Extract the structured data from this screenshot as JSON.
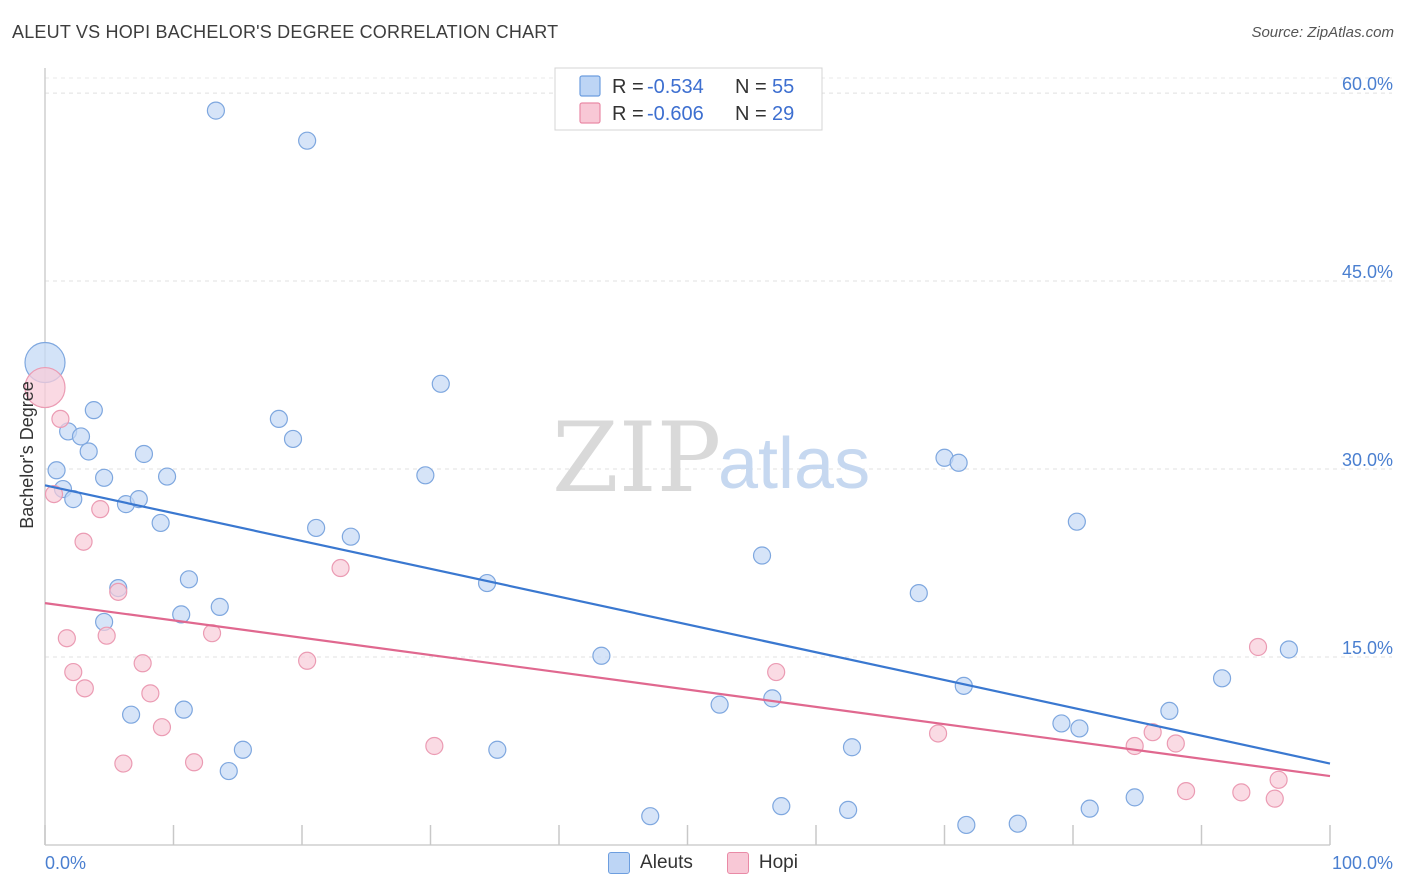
{
  "header": {
    "title": "ALEUT VS HOPI BACHELOR'S DEGREE CORRELATION CHART",
    "source": "Source: ZipAtlas.com"
  },
  "watermark": {
    "zip": "ZIP",
    "atlas": "atlas"
  },
  "stats": [
    {
      "r_label": "R =",
      "r_value": "-0.534",
      "n_label": "N =",
      "n_value": "55",
      "color": "#6d9edf",
      "fill": "#bdd5f5"
    },
    {
      "r_label": "R =",
      "r_value": "-0.606",
      "n_label": "N =",
      "n_value": "29",
      "color": "#e98aa6",
      "fill": "#f8c8d6"
    }
  ],
  "legend": [
    {
      "label": "Aleuts",
      "fill": "#bdd5f5",
      "border": "#6d9edf"
    },
    {
      "label": "Hopi",
      "fill": "#f8c8d6",
      "border": "#e98aa6"
    }
  ],
  "chart_data": {
    "type": "scatter",
    "title": "ALEUT VS HOPI BACHELOR'S DEGREE CORRELATION CHART",
    "xlabel": "",
    "ylabel": "Bachelor's Degree",
    "xlim": [
      0,
      100
    ],
    "ylim": [
      0,
      62
    ],
    "x_tick_labels": [
      "0.0%",
      "100.0%"
    ],
    "y_ticks": [
      15,
      30,
      45,
      60
    ],
    "y_tick_labels": [
      "15.0%",
      "30.0%",
      "45.0%",
      "60.0%"
    ],
    "grid": true,
    "series": [
      {
        "name": "Aleuts",
        "color": "#3a78d0",
        "fill": "#c4d9f5",
        "stroke": "#7ea7df",
        "trend": [
          [
            0,
            28.7
          ],
          [
            100,
            6.5
          ]
        ],
        "points": [
          {
            "x": 0.0,
            "y": 38.5,
            "big": true
          },
          {
            "x": 0.9,
            "y": 29.9
          },
          {
            "x": 1.4,
            "y": 28.4
          },
          {
            "x": 1.8,
            "y": 33.0
          },
          {
            "x": 2.2,
            "y": 27.6
          },
          {
            "x": 2.8,
            "y": 32.6
          },
          {
            "x": 3.4,
            "y": 31.4
          },
          {
            "x": 3.8,
            "y": 34.7
          },
          {
            "x": 4.6,
            "y": 29.3
          },
          {
            "x": 4.6,
            "y": 17.8
          },
          {
            "x": 5.7,
            "y": 20.5
          },
          {
            "x": 6.3,
            "y": 27.2
          },
          {
            "x": 6.7,
            "y": 10.4
          },
          {
            "x": 7.3,
            "y": 27.6
          },
          {
            "x": 7.7,
            "y": 31.2
          },
          {
            "x": 9.0,
            "y": 25.7
          },
          {
            "x": 9.5,
            "y": 29.4
          },
          {
            "x": 10.6,
            "y": 18.4
          },
          {
            "x": 10.8,
            "y": 10.8
          },
          {
            "x": 11.2,
            "y": 21.2
          },
          {
            "x": 13.3,
            "y": 58.6
          },
          {
            "x": 13.6,
            "y": 19.0
          },
          {
            "x": 14.3,
            "y": 5.9
          },
          {
            "x": 15.4,
            "y": 7.6
          },
          {
            "x": 18.2,
            "y": 34.0
          },
          {
            "x": 19.3,
            "y": 32.4
          },
          {
            "x": 20.4,
            "y": 56.2
          },
          {
            "x": 21.1,
            "y": 25.3
          },
          {
            "x": 23.8,
            "y": 24.6
          },
          {
            "x": 29.6,
            "y": 29.5
          },
          {
            "x": 30.8,
            "y": 36.8
          },
          {
            "x": 34.4,
            "y": 20.9
          },
          {
            "x": 35.2,
            "y": 7.6
          },
          {
            "x": 43.3,
            "y": 15.1
          },
          {
            "x": 47.1,
            "y": 2.3
          },
          {
            "x": 52.5,
            "y": 11.2
          },
          {
            "x": 55.8,
            "y": 23.1
          },
          {
            "x": 56.6,
            "y": 11.7
          },
          {
            "x": 57.3,
            "y": 3.1
          },
          {
            "x": 62.5,
            "y": 2.8
          },
          {
            "x": 62.8,
            "y": 7.8
          },
          {
            "x": 68.0,
            "y": 20.1
          },
          {
            "x": 70.0,
            "y": 30.9
          },
          {
            "x": 71.1,
            "y": 30.5
          },
          {
            "x": 71.5,
            "y": 12.7
          },
          {
            "x": 71.7,
            "y": 1.6
          },
          {
            "x": 75.7,
            "y": 1.7
          },
          {
            "x": 79.1,
            "y": 9.7
          },
          {
            "x": 80.3,
            "y": 25.8
          },
          {
            "x": 80.5,
            "y": 9.3
          },
          {
            "x": 81.3,
            "y": 2.9
          },
          {
            "x": 84.8,
            "y": 3.8
          },
          {
            "x": 87.5,
            "y": 10.7
          },
          {
            "x": 91.6,
            "y": 13.3
          },
          {
            "x": 96.8,
            "y": 15.6
          }
        ]
      },
      {
        "name": "Hopi",
        "color": "#e0688f",
        "fill": "#f8ccd9",
        "stroke": "#eb9bb3",
        "trend": [
          [
            0,
            19.3
          ],
          [
            100,
            5.5
          ]
        ],
        "points": [
          {
            "x": 0.0,
            "y": 36.5,
            "big": true
          },
          {
            "x": 0.7,
            "y": 28.0
          },
          {
            "x": 1.2,
            "y": 34.0
          },
          {
            "x": 1.7,
            "y": 16.5
          },
          {
            "x": 2.2,
            "y": 13.8
          },
          {
            "x": 3.1,
            "y": 12.5
          },
          {
            "x": 3.0,
            "y": 24.2
          },
          {
            "x": 4.3,
            "y": 26.8
          },
          {
            "x": 4.8,
            "y": 16.7
          },
          {
            "x": 5.7,
            "y": 20.2
          },
          {
            "x": 6.1,
            "y": 6.5
          },
          {
            "x": 7.6,
            "y": 14.5
          },
          {
            "x": 8.2,
            "y": 12.1
          },
          {
            "x": 9.1,
            "y": 9.4
          },
          {
            "x": 11.6,
            "y": 6.6
          },
          {
            "x": 13.0,
            "y": 16.9
          },
          {
            "x": 20.4,
            "y": 14.7
          },
          {
            "x": 23.0,
            "y": 22.1
          },
          {
            "x": 30.3,
            "y": 7.9
          },
          {
            "x": 56.9,
            "y": 13.8
          },
          {
            "x": 69.5,
            "y": 8.9
          },
          {
            "x": 84.8,
            "y": 7.9
          },
          {
            "x": 86.2,
            "y": 9.0
          },
          {
            "x": 88.0,
            "y": 8.1
          },
          {
            "x": 88.8,
            "y": 4.3
          },
          {
            "x": 93.1,
            "y": 4.2
          },
          {
            "x": 94.4,
            "y": 15.8
          },
          {
            "x": 95.7,
            "y": 3.7
          },
          {
            "x": 96.0,
            "y": 5.2
          }
        ]
      }
    ]
  }
}
